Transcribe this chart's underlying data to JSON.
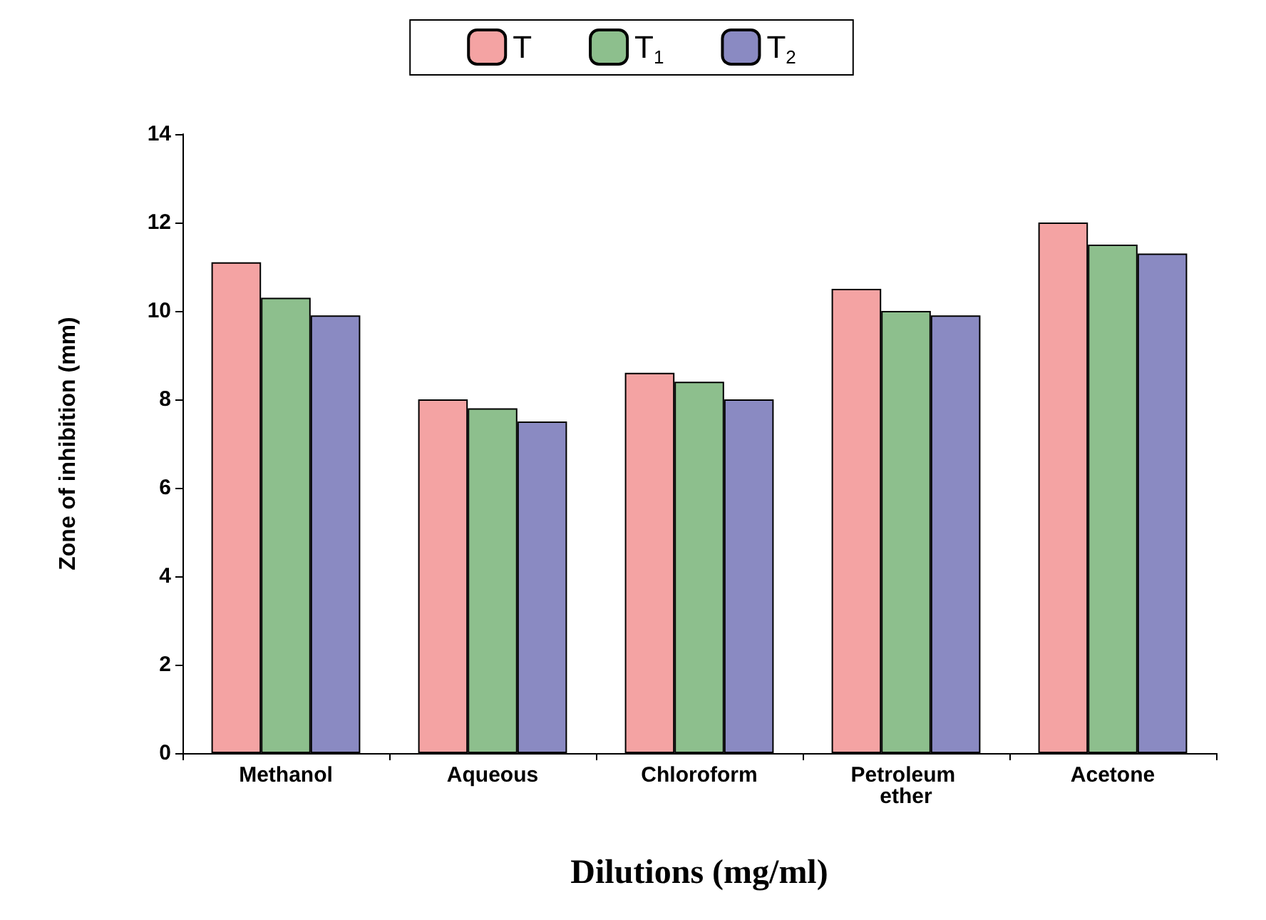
{
  "chart_data": {
    "type": "bar",
    "xlabel": "Dilutions (mg/ml)",
    "ylabel": "Zone of inhibition (mm)",
    "categories": [
      "Methanol",
      "Aqueous",
      "Chloroform",
      "Petroleum ether",
      "Acetone"
    ],
    "series": [
      {
        "name": "T",
        "color": "#f4a3a3",
        "values": [
          11.1,
          8.0,
          8.6,
          10.5,
          12.0
        ]
      },
      {
        "name": "T$_{1}$",
        "color": "#8dbf8d",
        "values": [
          10.3,
          7.8,
          8.4,
          10.0,
          11.5
        ]
      },
      {
        "name": "T$_{2}$",
        "color": "#8a8ac2",
        "values": [
          9.9,
          7.5,
          8.0,
          9.9,
          11.3
        ]
      }
    ],
    "ylim": [
      0,
      14
    ],
    "yticks": [
      0,
      2,
      4,
      6,
      8,
      10,
      12,
      14
    ],
    "grid": false,
    "legend": "top"
  }
}
